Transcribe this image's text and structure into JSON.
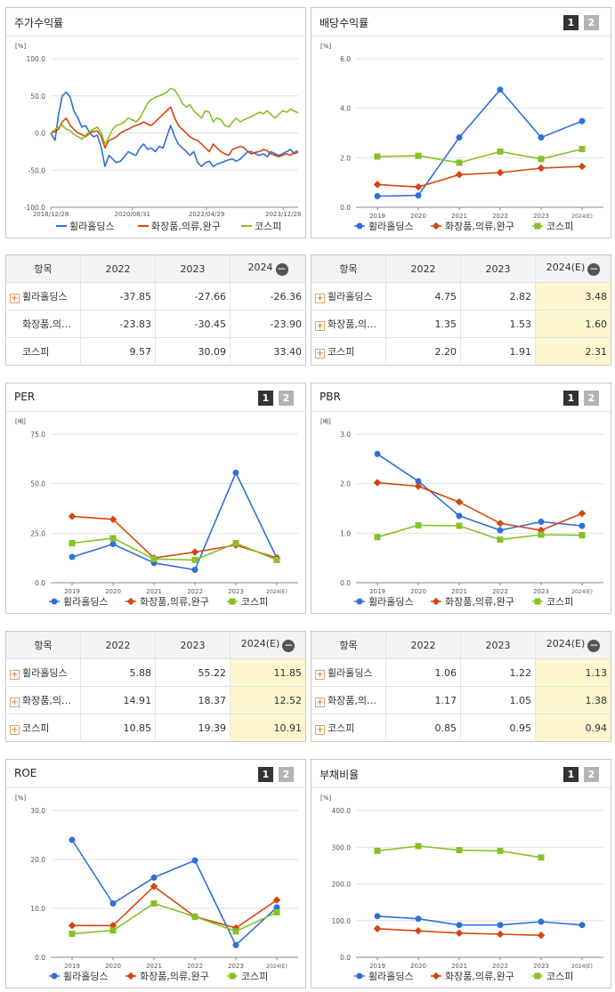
{
  "series_names": [
    "휠라홀딩스",
    "화장품,의류,완구",
    "코스피"
  ],
  "colors": {
    "blue": "#2f6fd8",
    "red": "#d64510",
    "green": "#84c225"
  },
  "chart_data": [
    {
      "type": "line",
      "title": "주가수익률",
      "unit": "[%]",
      "ylim": [
        -100,
        100
      ],
      "yticks": [
        "100.0",
        "50.0",
        "0.0",
        "-50.0",
        "-100.0"
      ],
      "xticks": [
        "2018/12/28",
        "2020/08/31",
        "2022/04/29",
        "2023/12/28"
      ],
      "x_dates": [
        "2018-12-28",
        "2019-01-31",
        "2019-02-28",
        "2019-03-29",
        "2019-04-30",
        "2019-05-31",
        "2019-06-28",
        "2019-07-31",
        "2019-08-30",
        "2019-09-30",
        "2019-10-31",
        "2019-11-29",
        "2019-12-30",
        "2020-01-31",
        "2020-02-28",
        "2020-03-31",
        "2020-04-29",
        "2020-05-29",
        "2020-06-30",
        "2020-07-31",
        "2020-08-31",
        "2020-09-29",
        "2020-10-30",
        "2020-11-30",
        "2020-12-30",
        "2021-01-29",
        "2021-02-26",
        "2021-03-31",
        "2021-04-30",
        "2021-05-31",
        "2021-06-30",
        "2021-07-30",
        "2021-08-31",
        "2021-09-30",
        "2021-10-29",
        "2021-11-30",
        "2021-12-30",
        "2022-01-28",
        "2022-02-28",
        "2022-03-31",
        "2022-04-29",
        "2022-05-31",
        "2022-06-30",
        "2022-07-29",
        "2022-08-31",
        "2022-09-30",
        "2022-10-31",
        "2022-11-30",
        "2022-12-29",
        "2023-01-31",
        "2023-02-28",
        "2023-03-31",
        "2023-04-28",
        "2023-05-31",
        "2023-06-30",
        "2023-07-31",
        "2023-08-31",
        "2023-09-27",
        "2023-10-31",
        "2023-11-30",
        "2023-12-28",
        "2024-01-31",
        "2024-02-29",
        "2024-03-29",
        "2024-04-30"
      ],
      "series": [
        {
          "color": "blue",
          "values": [
            0,
            -10,
            25,
            50,
            55,
            48,
            30,
            20,
            8,
            10,
            0,
            -5,
            -3,
            -20,
            -45,
            -30,
            -35,
            -40,
            -38,
            -32,
            -25,
            -28,
            -30,
            -20,
            -15,
            -22,
            -20,
            -25,
            -18,
            -20,
            -5,
            10,
            -5,
            -15,
            -20,
            -25,
            -30,
            -25,
            -40,
            -45,
            -40,
            -38,
            -45,
            -42,
            -40,
            -38,
            -36,
            -35,
            -38,
            -35,
            -30,
            -25,
            -25,
            -28,
            -30,
            -28,
            -32,
            -25,
            -28,
            -30,
            -28,
            -25,
            -22,
            -28,
            -26
          ]
        },
        {
          "color": "red",
          "values": [
            0,
            2,
            5,
            15,
            20,
            10,
            5,
            0,
            -2,
            -5,
            0,
            2,
            3,
            -5,
            -20,
            -10,
            -8,
            -5,
            0,
            3,
            5,
            8,
            10,
            12,
            15,
            12,
            10,
            15,
            20,
            25,
            30,
            35,
            20,
            10,
            5,
            0,
            -5,
            -8,
            -10,
            -15,
            -20,
            -25,
            -15,
            -20,
            -25,
            -28,
            -30,
            -22,
            -20,
            -18,
            -20,
            -25,
            -28,
            -26,
            -25,
            -22,
            -24,
            -28,
            -30,
            -32,
            -30,
            -28,
            -30,
            -26,
            -24
          ]
        },
        {
          "color": "green",
          "values": [
            0,
            5,
            8,
            10,
            5,
            3,
            -2,
            -5,
            -8,
            -3,
            2,
            5,
            8,
            0,
            -15,
            -5,
            5,
            10,
            12,
            15,
            20,
            18,
            15,
            20,
            30,
            40,
            45,
            48,
            50,
            52,
            55,
            60,
            58,
            50,
            40,
            35,
            38,
            30,
            25,
            20,
            30,
            28,
            15,
            20,
            18,
            10,
            8,
            15,
            20,
            15,
            18,
            20,
            22,
            25,
            28,
            26,
            30,
            25,
            20,
            25,
            30,
            28,
            32,
            30,
            27
          ]
        }
      ]
    },
    {
      "type": "line",
      "title": "배당수익률",
      "unit": "[%]",
      "ylim": [
        0,
        6
      ],
      "yticks": [
        "6.0",
        "4.0",
        "2.0",
        "0.0"
      ],
      "categories": [
        "2019",
        "2020",
        "2021",
        "2022",
        "2023",
        "2024(E)"
      ],
      "series": [
        {
          "color": "blue",
          "values": [
            0.45,
            0.48,
            2.82,
            4.75,
            2.82,
            3.48
          ]
        },
        {
          "color": "red",
          "values": [
            0.92,
            0.82,
            1.32,
            1.4,
            1.58,
            1.65
          ]
        },
        {
          "color": "green",
          "values": [
            2.05,
            2.08,
            1.8,
            2.25,
            1.95,
            2.35
          ]
        }
      ]
    },
    {
      "type": "line",
      "title": "PER",
      "unit": "[배]",
      "ylim": [
        0,
        75
      ],
      "yticks": [
        "75.0",
        "50.0",
        "25.0",
        "0.0"
      ],
      "categories": [
        "2019",
        "2020",
        "2021",
        "2022",
        "2023",
        "2024(E)"
      ],
      "series": [
        {
          "color": "blue",
          "values": [
            13,
            19.5,
            10,
            6.5,
            55.5,
            12.5
          ]
        },
        {
          "color": "red",
          "values": [
            33.5,
            32,
            12.5,
            15.5,
            19,
            12.5
          ]
        },
        {
          "color": "green",
          "values": [
            20,
            22.5,
            12,
            11.5,
            20,
            11.5
          ]
        }
      ]
    },
    {
      "type": "line",
      "title": "PBR",
      "unit": "[배]",
      "ylim": [
        0,
        3
      ],
      "yticks": [
        "3.0",
        "2.0",
        "1.0",
        "0.0"
      ],
      "categories": [
        "2019",
        "2020",
        "2021",
        "2022",
        "2023",
        "2024(E)"
      ],
      "series": [
        {
          "color": "blue",
          "values": [
            2.6,
            2.05,
            1.35,
            1.06,
            1.23,
            1.15
          ]
        },
        {
          "color": "red",
          "values": [
            2.02,
            1.95,
            1.63,
            1.2,
            1.06,
            1.4
          ]
        },
        {
          "color": "green",
          "values": [
            0.92,
            1.16,
            1.15,
            0.87,
            0.97,
            0.96
          ]
        }
      ]
    },
    {
      "type": "line",
      "title": "ROE",
      "unit": "[%]",
      "ylim": [
        0,
        30
      ],
      "yticks": [
        "30.0",
        "20.0",
        "10.0",
        "0.0"
      ],
      "categories": [
        "2019",
        "2020",
        "2021",
        "2022",
        "2023",
        "2024(E)"
      ],
      "series": [
        {
          "color": "blue",
          "values": [
            24,
            11,
            16.3,
            19.8,
            2.5,
            10.2
          ]
        },
        {
          "color": "red",
          "values": [
            6.5,
            6.5,
            14.5,
            8.3,
            6,
            11.7
          ]
        },
        {
          "color": "green",
          "values": [
            4.8,
            5.5,
            11,
            8.3,
            5.3,
            9.2
          ]
        }
      ]
    },
    {
      "type": "line",
      "title": "부채비율",
      "unit": "[%]",
      "ylim": [
        0,
        400
      ],
      "yticks": [
        "400.0",
        "300.0",
        "200.0",
        "100.0",
        "0.0"
      ],
      "categories": [
        "2019",
        "2020",
        "2021",
        "2022",
        "2023",
        "2024(E)"
      ],
      "series": [
        {
          "color": "blue",
          "values": [
            112,
            105,
            88,
            88,
            97,
            88
          ]
        },
        {
          "color": "red",
          "values": [
            78,
            72,
            66,
            63,
            60,
            null
          ]
        },
        {
          "color": "green",
          "values": [
            290,
            303,
            292,
            290,
            272,
            null
          ]
        }
      ]
    }
  ],
  "tables": [
    {
      "headers": [
        "항목",
        "2022",
        "2023",
        "2024"
      ],
      "rows": [
        {
          "plus": true,
          "name": "휠라홀딩스",
          "values": [
            "-37.85",
            "-27.66",
            "-26.36"
          ]
        },
        {
          "plus": false,
          "name": "화장품,의…",
          "values": [
            "-23.83",
            "-30.45",
            "-23.90"
          ]
        },
        {
          "plus": false,
          "name": "코스피",
          "values": [
            "9.57",
            "30.09",
            "33.40"
          ]
        }
      ]
    },
    {
      "headers": [
        "항목",
        "2022",
        "2023",
        "2024(E)"
      ],
      "rows": [
        {
          "plus": true,
          "name": "휠라홀딩스",
          "values": [
            "4.75",
            "2.82",
            "3.48"
          ]
        },
        {
          "plus": true,
          "name": "화장품,의…",
          "values": [
            "1.35",
            "1.53",
            "1.60"
          ]
        },
        {
          "plus": true,
          "name": "코스피",
          "values": [
            "2.20",
            "1.91",
            "2.31"
          ]
        }
      ]
    },
    {
      "headers": [
        "항목",
        "2022",
        "2023",
        "2024(E)"
      ],
      "rows": [
        {
          "plus": true,
          "name": "휠라홀딩스",
          "values": [
            "5.88",
            "55.22",
            "11.85"
          ]
        },
        {
          "plus": true,
          "name": "화장품,의…",
          "values": [
            "14.91",
            "18.37",
            "12.52"
          ]
        },
        {
          "plus": true,
          "name": "코스피",
          "values": [
            "10.85",
            "19.39",
            "10.91"
          ]
        }
      ]
    },
    {
      "headers": [
        "항목",
        "2022",
        "2023",
        "2024(E)"
      ],
      "rows": [
        {
          "plus": true,
          "name": "휠라홀딩스",
          "values": [
            "1.06",
            "1.22",
            "1.13"
          ]
        },
        {
          "plus": true,
          "name": "화장품,의…",
          "values": [
            "1.17",
            "1.05",
            "1.38"
          ]
        },
        {
          "plus": true,
          "name": "코스피",
          "values": [
            "0.85",
            "0.95",
            "0.94"
          ]
        }
      ]
    }
  ],
  "buttons": {
    "one": "1",
    "two": "2",
    "minus": "−",
    "plus": "+"
  }
}
